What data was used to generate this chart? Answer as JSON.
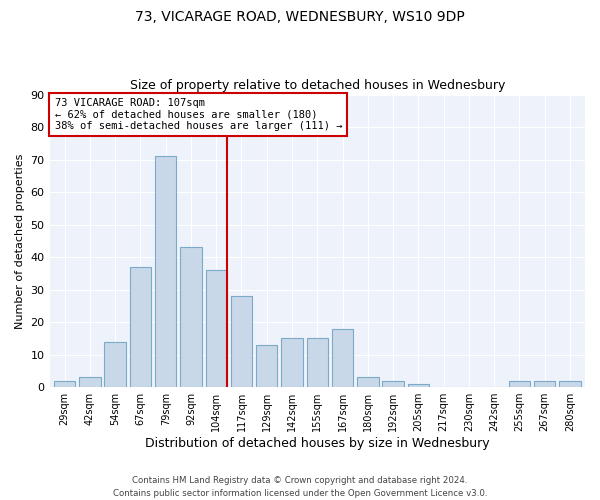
{
  "title": "73, VICARAGE ROAD, WEDNESBURY, WS10 9DP",
  "subtitle": "Size of property relative to detached houses in Wednesbury",
  "xlabel": "Distribution of detached houses by size in Wednesbury",
  "ylabel": "Number of detached properties",
  "categories": [
    "29sqm",
    "42sqm",
    "54sqm",
    "67sqm",
    "79sqm",
    "92sqm",
    "104sqm",
    "117sqm",
    "129sqm",
    "142sqm",
    "155sqm",
    "167sqm",
    "180sqm",
    "192sqm",
    "205sqm",
    "217sqm",
    "230sqm",
    "242sqm",
    "255sqm",
    "267sqm",
    "280sqm"
  ],
  "values": [
    2,
    3,
    14,
    37,
    71,
    43,
    36,
    28,
    13,
    15,
    15,
    18,
    3,
    2,
    1,
    0,
    0,
    0,
    2,
    2,
    2
  ],
  "bar_color": "#c8d8e8",
  "bar_edge_color": "#7aaac8",
  "vline_x_index": 6,
  "vline_color": "#cc0000",
  "ylim": [
    0,
    90
  ],
  "yticks": [
    0,
    10,
    20,
    30,
    40,
    50,
    60,
    70,
    80,
    90
  ],
  "annotation_line1": "73 VICARAGE ROAD: 107sqm",
  "annotation_line2": "← 62% of detached houses are smaller (180)",
  "annotation_line3": "38% of semi-detached houses are larger (111) →",
  "annotation_box_color": "#cc0000",
  "bg_color": "#eef2fa",
  "footer_line1": "Contains HM Land Registry data © Crown copyright and database right 2024.",
  "footer_line2": "Contains public sector information licensed under the Open Government Licence v3.0."
}
